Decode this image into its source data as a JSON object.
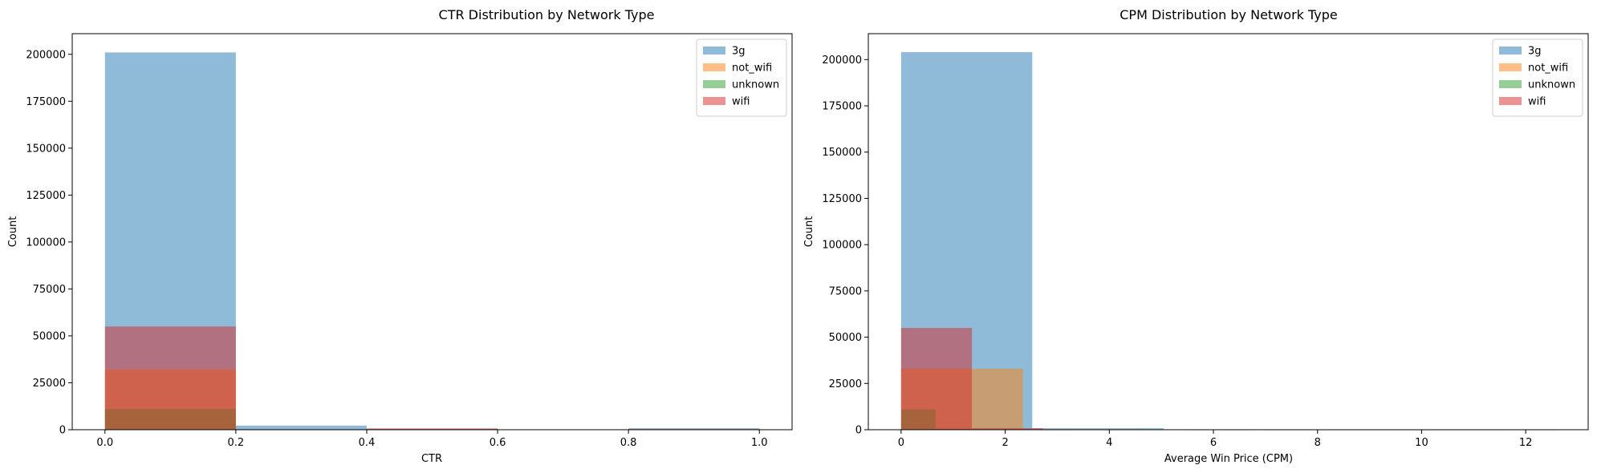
{
  "chart_data": [
    {
      "type": "histogram",
      "title": "CTR Distribution by Network Type",
      "xlabel": "CTR",
      "ylabel": "Count",
      "xlim": [
        -0.05,
        1.05
      ],
      "ylim": [
        0,
        211000
      ],
      "xticks": [
        "0.0",
        "0.2",
        "0.4",
        "0.6",
        "0.8",
        "1.0"
      ],
      "yticks": [
        "0",
        "25000",
        "50000",
        "75000",
        "100000",
        "125000",
        "150000",
        "175000",
        "200000"
      ],
      "grid": false,
      "legend_position": "top-right",
      "series": [
        {
          "name": "3g",
          "color": "#1f77b4",
          "bins": [
            [
              0.0,
              0.2,
              201000
            ],
            [
              0.2,
              0.4,
              2200
            ],
            [
              0.4,
              0.6,
              500
            ],
            [
              0.6,
              0.8,
              0
            ],
            [
              0.8,
              1.0,
              800
            ]
          ]
        },
        {
          "name": "not_wifi",
          "color": "#ff7f0e",
          "bins": [
            [
              0.0,
              0.2,
              32000
            ],
            [
              0.2,
              0.4,
              200
            ],
            [
              0.4,
              0.6,
              300
            ],
            [
              0.6,
              0.8,
              0
            ],
            [
              0.8,
              1.0,
              300
            ]
          ]
        },
        {
          "name": "unknown",
          "color": "#2ca02c",
          "bins": [
            [
              0.0,
              0.2,
              11000
            ],
            [
              0.2,
              0.4,
              0
            ],
            [
              0.4,
              0.6,
              0
            ],
            [
              0.6,
              0.8,
              0
            ],
            [
              0.8,
              1.0,
              100
            ]
          ]
        },
        {
          "name": "wifi",
          "color": "#d62728",
          "bins": [
            [
              0.0,
              0.2,
              55000
            ],
            [
              0.2,
              0.4,
              300
            ],
            [
              0.4,
              0.6,
              700
            ],
            [
              0.6,
              0.8,
              0
            ],
            [
              0.8,
              1.0,
              300
            ]
          ]
        }
      ]
    },
    {
      "type": "histogram",
      "title": "CPM Distribution by Network Type",
      "xlabel": "Average Win Price (CPM)",
      "ylabel": "Count",
      "xlim": [
        -0.63,
        13.2
      ],
      "ylim": [
        0,
        214000
      ],
      "xticks": [
        "0",
        "2",
        "4",
        "6",
        "8",
        "10",
        "12"
      ],
      "yticks": [
        "0",
        "25000",
        "50000",
        "75000",
        "100000",
        "125000",
        "150000",
        "175000",
        "200000"
      ],
      "grid": false,
      "legend_position": "top-right",
      "series": [
        {
          "name": "3g",
          "color": "#1f77b4",
          "bins": [
            [
              0.0,
              2.52,
              204000
            ],
            [
              2.52,
              5.04,
              800
            ],
            [
              5.04,
              7.56,
              100
            ],
            [
              7.56,
              10.08,
              50
            ],
            [
              10.08,
              12.6,
              20
            ]
          ]
        },
        {
          "name": "not_wifi",
          "color": "#ff7f0e",
          "bins": [
            [
              0.0,
              2.34,
              33000
            ],
            [
              2.34,
              4.68,
              300
            ],
            [
              4.68,
              7.02,
              50
            ],
            [
              7.02,
              9.36,
              20
            ],
            [
              9.36,
              11.7,
              10
            ]
          ]
        },
        {
          "name": "unknown",
          "color": "#2ca02c",
          "bins": [
            [
              0.0,
              0.66,
              11000
            ],
            [
              0.66,
              1.32,
              400
            ],
            [
              1.32,
              1.98,
              100
            ],
            [
              1.98,
              2.64,
              50
            ],
            [
              2.64,
              3.3,
              20
            ]
          ]
        },
        {
          "name": "wifi",
          "color": "#d62728",
          "bins": [
            [
              0.0,
              1.36,
              55000
            ],
            [
              1.36,
              2.72,
              800
            ],
            [
              2.72,
              4.08,
              200
            ],
            [
              4.08,
              5.44,
              80
            ],
            [
              5.44,
              6.8,
              30
            ]
          ]
        }
      ]
    }
  ]
}
